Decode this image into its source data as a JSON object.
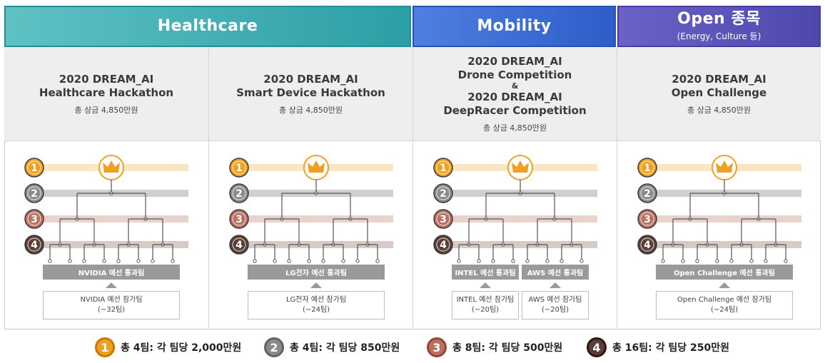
{
  "categories": {
    "healthcare": {
      "title": "Healthcare",
      "color": "#2b9fa6"
    },
    "mobility": {
      "title": "Mobility",
      "color": "#2e5dc9"
    },
    "open": {
      "title": "Open 종목",
      "subtitle": "(Energy, Culture 등)",
      "color": "#4e48ad"
    }
  },
  "competitions": [
    {
      "title_lines": [
        "2020 DREAM_AI",
        "Healthcare Hackathon"
      ],
      "prize": "총 상금 4,850만원",
      "pass_boxes": [
        "NVIDIA 예선 통과팀"
      ],
      "participant_boxes": [
        {
          "name": "NVIDIA 예선 참가팀",
          "count": "(~32팀)"
        }
      ]
    },
    {
      "title_lines": [
        "2020 DREAM_AI",
        "Smart Device Hackathon"
      ],
      "prize": "총 상금 4,850만원",
      "pass_boxes": [
        "LG전자 예선 통과팀"
      ],
      "participant_boxes": [
        {
          "name": "LG전자 예선 참가팀",
          "count": "(~24팀)"
        }
      ]
    },
    {
      "title_lines": [
        "2020 DREAM_AI",
        "Drone Competition",
        "&",
        "2020 DREAM_AI",
        "DeepRacer Competition"
      ],
      "prize": "총 상금 4,850만원",
      "pass_boxes": [
        "INTEL 예선 통과팀",
        "AWS 예선 통과팀"
      ],
      "participant_boxes": [
        {
          "name": "INTEL 예선 참가팀",
          "count": "(~20팀)"
        },
        {
          "name": "AWS 예선 참가팀",
          "count": "(~20팀)"
        }
      ]
    },
    {
      "title_lines": [
        "2020 DREAM_AI",
        "Open Challenge"
      ],
      "prize": "총 상금 4,850만원",
      "pass_boxes": [
        "Open Challenge 예선 통과팀"
      ],
      "participant_boxes": [
        {
          "name": "Open Challenge 예선 참가팀",
          "count": "(~24팀)"
        }
      ]
    }
  ],
  "ranks": [
    {
      "num": "1",
      "color": "#f0a020",
      "band_color": "#f8e6c4"
    },
    {
      "num": "2",
      "color": "#8a8a8a",
      "band_color": "#cfcfcf"
    },
    {
      "num": "3",
      "color": "#b87060",
      "band_color": "#e8d2cc"
    },
    {
      "num": "4",
      "color": "#5a3e38",
      "band_color": "#d6cac6"
    }
  ],
  "legend": [
    {
      "num": "1",
      "text": "총 4팀: 각 팀당 2,000만원"
    },
    {
      "num": "2",
      "text": "총 4팀: 각 팀당 850만원"
    },
    {
      "num": "3",
      "text": "총 8팀: 각 팀당 500만원"
    },
    {
      "num": "4",
      "text": "총 16팀: 각 팀당 250만원"
    }
  ]
}
